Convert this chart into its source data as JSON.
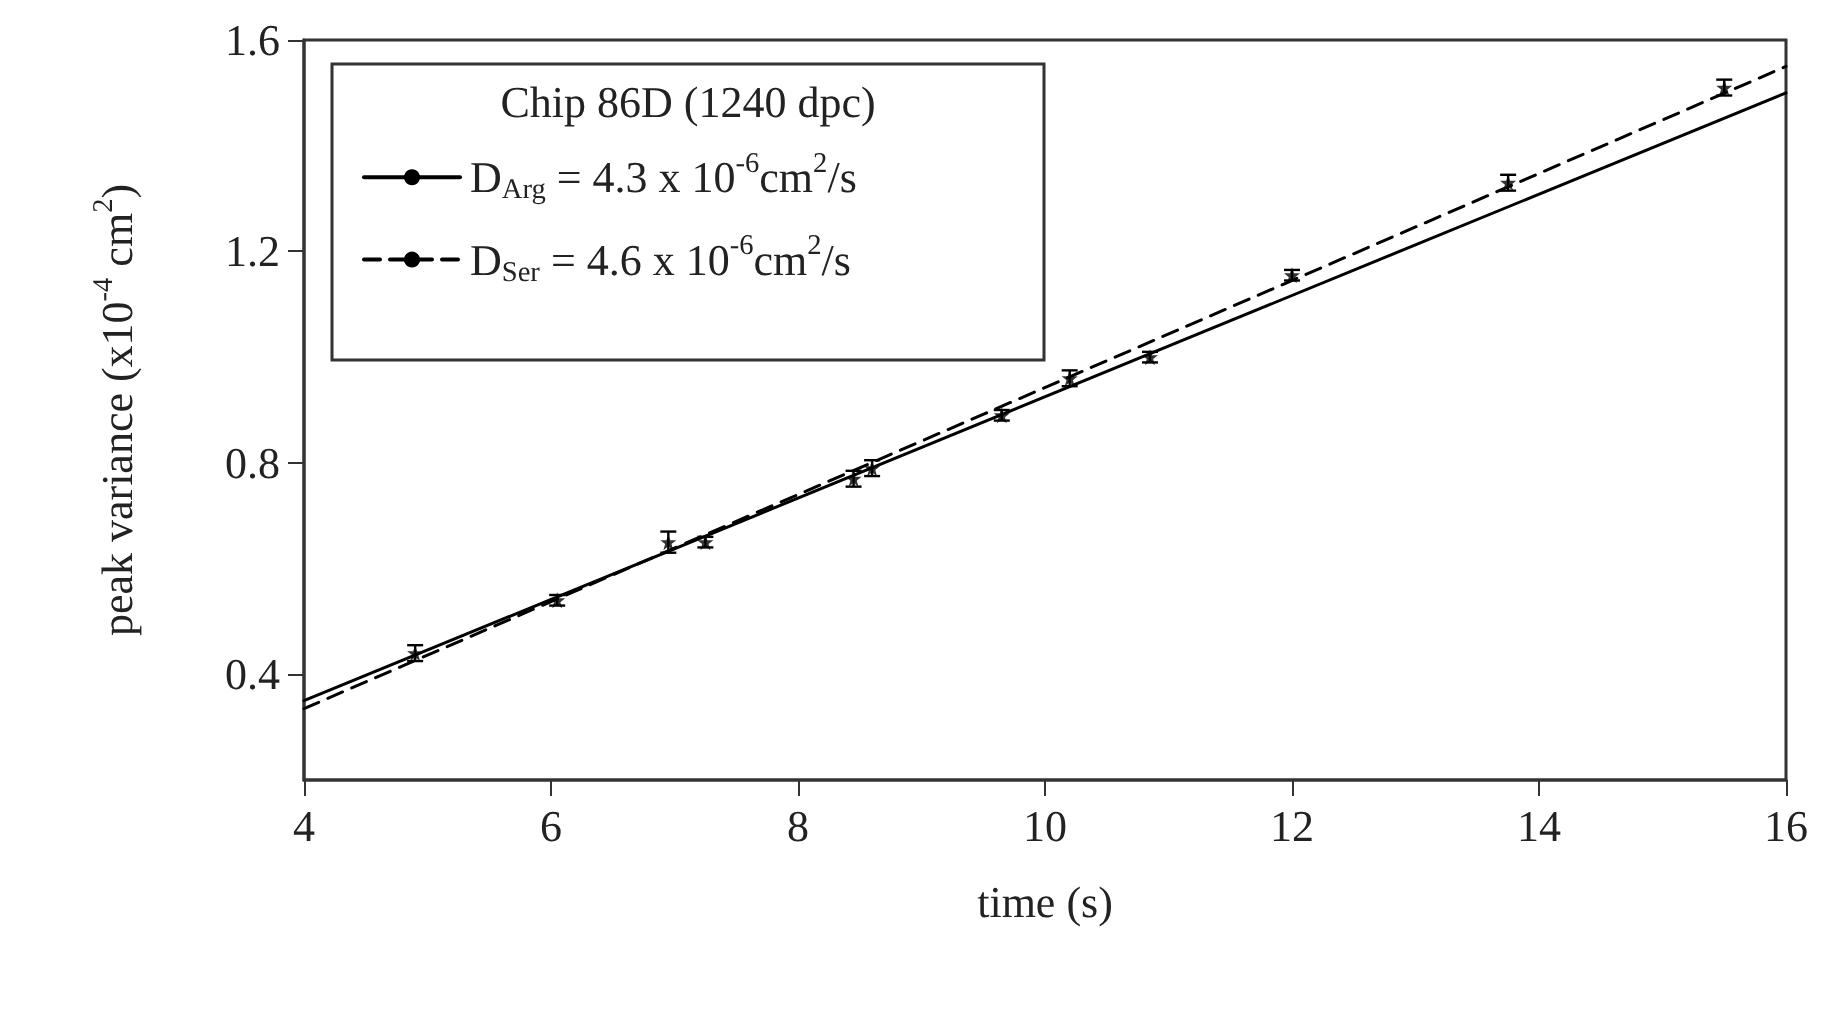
{
  "chart_data": {
    "type": "scatter",
    "xlabel": "time (s)",
    "ylabel": "peak variance (x10$^{-4}$ cm$^{2}$)",
    "legend_title": "Chip 86D (1240 dpc)",
    "xlim": [
      4,
      16
    ],
    "xticks": [
      4,
      6,
      8,
      10,
      12,
      14,
      16
    ],
    "ylim": [
      0.2,
      1.6
    ],
    "yticks": [
      0.4,
      0.8,
      1.2,
      1.6
    ],
    "grid": false,
    "legend": "top left",
    "series": [
      {
        "type": "line",
        "name": "D$_{Arg}$ = 4.3 x 10$^{-6}$cm$^{2}$/s",
        "color": "#000000",
        "line_style": "solid",
        "marker": "none",
        "x": [
          4,
          16
        ],
        "values": [
          0.35,
          1.5
        ]
      },
      {
        "type": "line",
        "name": "D$_{Ser}$ = 4.6 x 10$^{-6}$cm$^{2}$/s",
        "color": "#000000",
        "line_style": "dashed",
        "marker": "none",
        "x": [
          4,
          16
        ],
        "values": [
          0.335,
          1.55
        ]
      },
      {
        "color": "#000000",
        "marker": "star",
        "x": [
          4.9,
          6.05,
          6.95,
          7.25,
          8.45,
          8.6,
          9.65,
          10.2,
          10.85,
          12.0,
          13.75,
          15.5
        ],
        "values": [
          0.44,
          0.54,
          0.65,
          0.65,
          0.77,
          0.79,
          0.89,
          0.96,
          1.0,
          1.155,
          1.33,
          1.51
        ],
        "errors": [
          0.015,
          0.01,
          0.02,
          0.01,
          0.015,
          0.015,
          0.01,
          0.015,
          0.01,
          0.01,
          0.015,
          0.015
        ]
      }
    ]
  }
}
